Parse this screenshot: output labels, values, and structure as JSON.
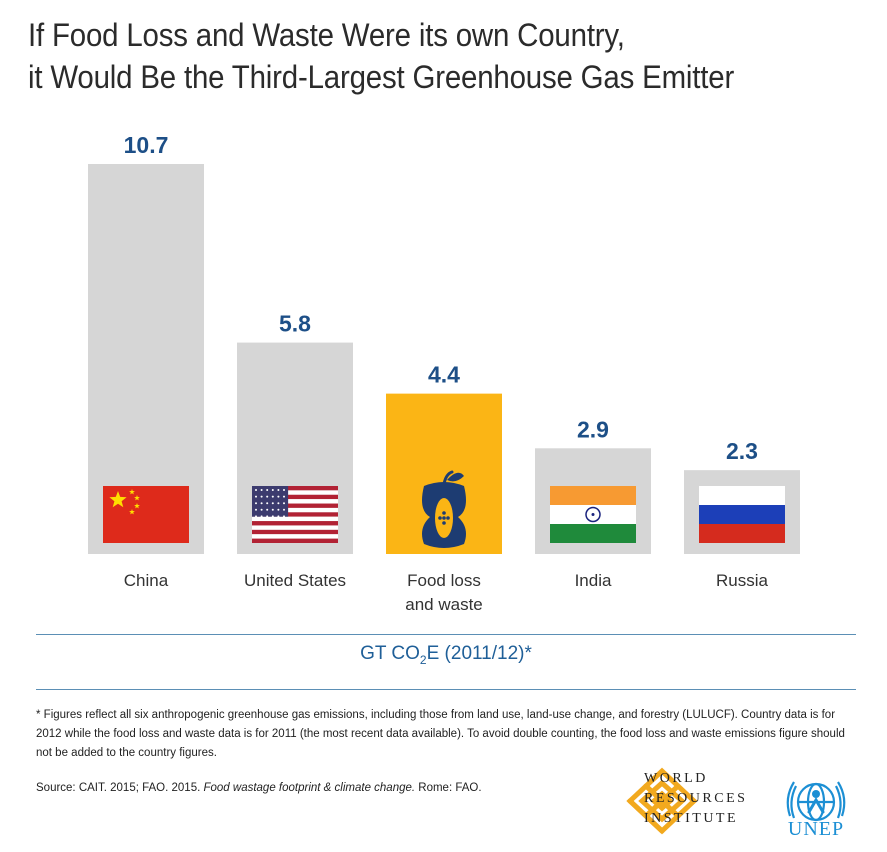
{
  "colors": {
    "bar_gray": "#d6d6d6",
    "bar_highlight": "#fbb515",
    "value_text": "#1d4f87",
    "rule": "#5b8fb5",
    "unit_text": "#1f5f98",
    "wri_orange": "#f2a91e",
    "unep_blue": "#1c8fd4"
  },
  "header": {
    "title_line1": "If Food Loss and Waste Were its own Country,",
    "title_line2": "it Would Be the Third-Largest Greenhouse Gas Emitter"
  },
  "chart_data": {
    "type": "bar",
    "categories": [
      "China",
      "United States",
      "Food loss and waste",
      "India",
      "Russia"
    ],
    "category_lines": [
      [
        "China"
      ],
      [
        "United States"
      ],
      [
        "Food loss",
        "and waste"
      ],
      [
        "India"
      ],
      [
        "Russia"
      ]
    ],
    "values": [
      10.7,
      5.8,
      4.4,
      2.9,
      2.3
    ],
    "value_labels": [
      "10.7",
      "5.8",
      "4.4",
      "2.9",
      "2.3"
    ],
    "highlight_index": 2,
    "icons": [
      "china-flag-icon",
      "us-flag-icon",
      "apple-core-icon",
      "india-flag-icon",
      "russia-flag-icon"
    ],
    "ylim": [
      0,
      10.7
    ],
    "grid": false,
    "xlabel": "GT CO2E (2011/12)*"
  },
  "unit": {
    "prefix": "GT CO",
    "sub": "2",
    "suffix": "E (2011/12)*"
  },
  "footnote": "* Figures reflect all six anthropogenic greenhouse gas emissions, including those from land use, land-use change, and forestry (LULUCF).  Country data is for 2012 while the food loss and waste data is for 2011 (the most recent data available). To avoid double counting, the food loss and waste emissions figure should not be added to the country figures.",
  "source": {
    "prefix": "Source: CAIT. 2015; FAO. 2015. ",
    "italic": "Food wastage footprint & climate change.",
    "suffix": " Rome: FAO."
  },
  "logos": {
    "wri_line1": "WORLD",
    "wri_line2": "RESOURCES",
    "wri_line3": "INSTITUTE",
    "unep": "UNEP"
  }
}
